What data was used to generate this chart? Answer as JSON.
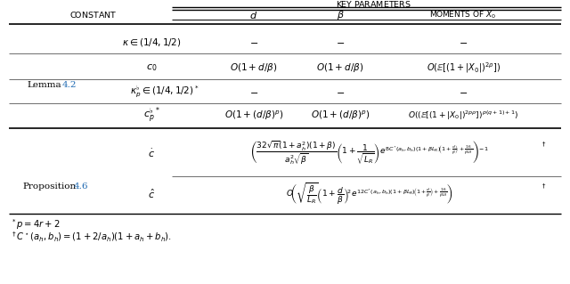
{
  "bg_color": "#ffffff",
  "lemma_color": "#1f6ab2",
  "prop_color": "#1f6ab2",
  "header_top": "Key Parameters",
  "header_constant": "Constant",
  "header_d": "$d$",
  "header_beta": "$\\beta$",
  "header_moments": "Moments of $X_0$",
  "lemma_label_text": "Lemma",
  "lemma_label_num": "4.2",
  "prop_label_text": "Proposition",
  "prop_label_num": "4.6",
  "row1_const": "$\\kappa \\in (1/4,1/2)$",
  "row1_d": "$-$",
  "row1_b": "$-$",
  "row1_m": "$-$",
  "row2_const": "$c_0$",
  "row2_d": "$O(1+d/\\beta)$",
  "row2_b": "$O(1+d/\\beta)$",
  "row2_m": "$O(\\mathbb{E}[(1+|X_0|)^{2\\rho}])$",
  "row3_const": "$\\kappa_p^{\\flat} \\in (1/4,1/2)^*$",
  "row3_d": "$-$",
  "row3_b": "$-$",
  "row3_m": "$-$",
  "row4_const": "$c_p^{\\flat\\,*}$",
  "row4_d": "$O(1+(d/\\beta)^p)$",
  "row4_b": "$O(1+(d/\\beta)^p)$",
  "row4_m": "$O((\\mathbb{E}[(1+|X_0|)^{2p\\rho}])^{p(q+1)+1})$",
  "row5_const": "$\\dot{c}$",
  "row5_formula": "$\\left(\\dfrac{32\\sqrt{\\pi}(1+a_h^2)(1+\\beta)}{a_h^2\\sqrt{\\beta}}\\left(1+\\dfrac{1}{\\sqrt{L_R}}\\right)e^{8C^{\\star}(a_h,b_h)(1+\\beta L_R)\\left(1+\\frac{d}{\\beta}\\right)+\\frac{16}{\\beta L_R}}\\right)^{-1}$",
  "row5_dagger": "${}^\\dagger$",
  "row6_const": "$\\hat{c}$",
  "row6_formula": "$O\\!\\left(\\sqrt{\\dfrac{\\beta}{L_R}}\\left(1+\\dfrac{d}{\\beta}\\right)^{\\!2}e^{12C^{\\star}(a_h,b_h)(1+\\beta L_R)\\left(1+\\frac{d}{\\beta}\\right)+\\frac{16}{\\beta L_R}}\\right)$",
  "row6_dagger": "${}^\\dagger$",
  "fn1": "${}^*p = 4r+2$",
  "fn2": "${}^\\dagger C^\\star(a_h,b_h) = (1+2/a_h)(1+a_h+b_h).$"
}
